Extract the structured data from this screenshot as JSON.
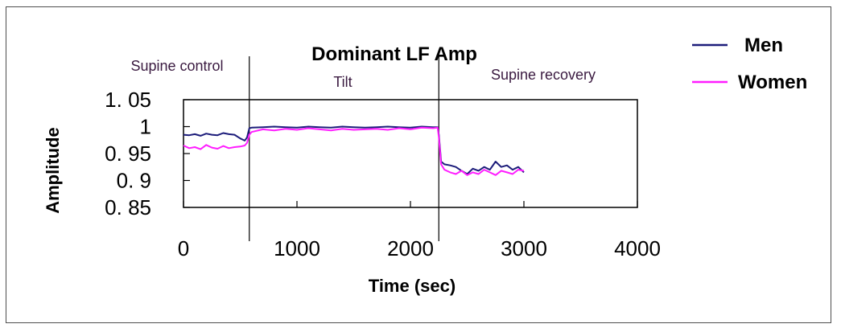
{
  "chart_data": {
    "type": "line",
    "title": "Dominant LF Amp",
    "xlabel": "Time (sec)",
    "ylabel": "Amplitude",
    "xlim": [
      0,
      4000
    ],
    "ylim": [
      0.85,
      1.05
    ],
    "x_ticks": [
      "0",
      "1000",
      "2000",
      "3000",
      "4000"
    ],
    "y_ticks": [
      "1. 05",
      "1",
      "0. 95",
      "0. 9",
      "0. 85"
    ],
    "y_tick_values": [
      1.05,
      1.0,
      0.95,
      0.9,
      0.85
    ],
    "x_tick_values": [
      0,
      1000,
      2000,
      3000,
      4000
    ],
    "legend_position": "top-right",
    "phases": [
      {
        "label": "Supine control",
        "start": 0,
        "end": 580
      },
      {
        "label": "Tilt",
        "start": 580,
        "end": 2250
      },
      {
        "label": "Supine recovery",
        "start": 2250,
        "end": 3000
      }
    ],
    "phase_boundaries": [
      580,
      2250
    ],
    "series": [
      {
        "name": "Men",
        "color": "#1c1c7a",
        "x": [
          0,
          50,
          100,
          150,
          200,
          250,
          300,
          350,
          400,
          450,
          500,
          540,
          560,
          580,
          600,
          700,
          800,
          900,
          1000,
          1100,
          1200,
          1300,
          1400,
          1500,
          1600,
          1700,
          1800,
          1900,
          2000,
          2100,
          2200,
          2240,
          2250,
          2270,
          2300,
          2350,
          2400,
          2450,
          2500,
          2550,
          2600,
          2650,
          2700,
          2750,
          2800,
          2850,
          2900,
          2950,
          3000
        ],
        "y": [
          0.985,
          0.984,
          0.986,
          0.983,
          0.987,
          0.985,
          0.984,
          0.988,
          0.986,
          0.985,
          0.978,
          0.974,
          0.98,
          0.997,
          0.998,
          0.999,
          1.0,
          0.999,
          0.998,
          1.0,
          0.999,
          0.998,
          1.0,
          0.999,
          0.998,
          0.999,
          1.0,
          0.999,
          0.998,
          1.0,
          0.999,
          0.999,
          0.985,
          0.935,
          0.93,
          0.928,
          0.925,
          0.918,
          0.912,
          0.922,
          0.918,
          0.925,
          0.92,
          0.935,
          0.925,
          0.928,
          0.92,
          0.925,
          0.915
        ]
      },
      {
        "name": "Women",
        "color": "#ff1dff",
        "x": [
          0,
          50,
          100,
          150,
          200,
          250,
          300,
          350,
          400,
          450,
          500,
          540,
          560,
          580,
          600,
          700,
          800,
          900,
          1000,
          1100,
          1200,
          1300,
          1400,
          1500,
          1600,
          1700,
          1800,
          1900,
          2000,
          2100,
          2200,
          2240,
          2250,
          2270,
          2300,
          2350,
          2400,
          2450,
          2500,
          2550,
          2600,
          2650,
          2700,
          2750,
          2800,
          2850,
          2900,
          2950,
          3000
        ],
        "y": [
          0.965,
          0.96,
          0.962,
          0.958,
          0.966,
          0.961,
          0.959,
          0.964,
          0.96,
          0.962,
          0.963,
          0.965,
          0.97,
          0.985,
          0.99,
          0.995,
          0.993,
          0.996,
          0.994,
          0.997,
          0.995,
          0.993,
          0.996,
          0.994,
          0.995,
          0.996,
          0.994,
          0.997,
          0.995,
          0.998,
          0.997,
          0.998,
          0.98,
          0.93,
          0.92,
          0.915,
          0.912,
          0.918,
          0.91,
          0.915,
          0.912,
          0.92,
          0.915,
          0.91,
          0.918,
          0.915,
          0.912,
          0.92,
          0.918
        ]
      }
    ]
  }
}
